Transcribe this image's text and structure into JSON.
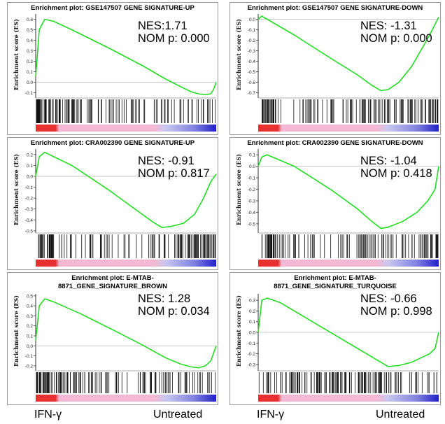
{
  "chart_data": [
    {
      "type": "line",
      "title": "Enrichment plot: GSE147507 GENE SIGNATURE-UP",
      "ylabel": "Enrichment score (ES)",
      "yticks": [
        "0.6",
        "0.5",
        "0.4",
        "0.3",
        "0.2",
        "0.1",
        "0.0",
        "-0.1"
      ],
      "ylim": [
        -0.15,
        0.65
      ],
      "nes": "NES:1.71",
      "pval": "NOM p: 0.000",
      "series": [
        {
          "x": [
            0,
            0.02,
            0.05,
            0.1,
            0.2,
            0.4,
            0.6,
            0.72,
            0.8,
            0.86,
            0.9,
            0.94,
            0.97,
            0.985,
            1.0
          ],
          "y": [
            0.05,
            0.5,
            0.6,
            0.58,
            0.5,
            0.33,
            0.15,
            0.03,
            -0.04,
            -0.09,
            -0.11,
            -0.12,
            -0.11,
            -0.07,
            0.0
          ]
        }
      ],
      "hit_density": "top"
    },
    {
      "type": "line",
      "title": "Enrichment plot: GSE147507 GENE SIGNATURE-DOWN",
      "ylabel": "Enrichment score (ES)",
      "yticks": [
        "0.0",
        "-0.1",
        "-0.2",
        "-0.3",
        "-0.4",
        "-0.5",
        "-0.6",
        "-0.7"
      ],
      "ylim": [
        -0.75,
        0.05
      ],
      "nes": "NES: -1.31",
      "pval": "NOM p: 0.000",
      "series": [
        {
          "x": [
            0,
            0.02,
            0.05,
            0.2,
            0.4,
            0.55,
            0.63,
            0.68,
            0.72,
            0.78,
            0.85,
            0.9,
            0.95,
            1.0
          ],
          "y": [
            0.0,
            0.03,
            0.0,
            -0.15,
            -0.37,
            -0.53,
            -0.63,
            -0.68,
            -0.67,
            -0.6,
            -0.45,
            -0.3,
            -0.15,
            0.02
          ]
        }
      ],
      "hit_density": "bottom"
    },
    {
      "type": "line",
      "title": "Enrichment plot: CRA002390 GENE SIGNATURE-UP",
      "ylabel": "Enrichment score (ES)",
      "yticks": [
        "0.2",
        "0.1",
        "0.0",
        "-0.1",
        "-0.2",
        "-0.3",
        "-0.4",
        "-0.5"
      ],
      "ylim": [
        -0.52,
        0.25
      ],
      "nes": "NES: -0.91",
      "pval": "NOM p: 0.817",
      "series": [
        {
          "x": [
            0,
            0.02,
            0.05,
            0.2,
            0.4,
            0.55,
            0.65,
            0.7,
            0.75,
            0.82,
            0.88,
            0.93,
            0.97,
            1.0
          ],
          "y": [
            0.0,
            0.18,
            0.22,
            0.1,
            -0.12,
            -0.3,
            -0.42,
            -0.47,
            -0.46,
            -0.43,
            -0.35,
            -0.2,
            -0.05,
            0.02
          ]
        }
      ],
      "hit_density": "bottom"
    },
    {
      "type": "line",
      "title": "Enrichment plot: CRA002390 GENE SIGNATURE-DOWN",
      "ylabel": "Enrichment score (ES)",
      "yticks": [
        "0.1",
        "0.0",
        "-0.1",
        "-0.2",
        "-0.3",
        "-0.4",
        "-0.5"
      ],
      "ylim": [
        -0.58,
        0.15
      ],
      "nes": "NES: -1.04",
      "pval": "NOM p: 0.418",
      "series": [
        {
          "x": [
            0,
            0.02,
            0.05,
            0.2,
            0.4,
            0.55,
            0.63,
            0.68,
            0.72,
            0.8,
            0.88,
            0.94,
            0.98,
            1.0
          ],
          "y": [
            0.0,
            0.08,
            0.1,
            0.0,
            -0.2,
            -0.37,
            -0.48,
            -0.54,
            -0.53,
            -0.48,
            -0.4,
            -0.3,
            -0.2,
            0.0
          ]
        }
      ],
      "hit_density": "bottom"
    },
    {
      "type": "line",
      "title": "Enrichment plot: E-MTAB-\n8871_GENE_SIGNATURE_BROWN",
      "ylabel": "Enrichment score (ES)",
      "yticks": [
        "0.5",
        "0.4",
        "0.3",
        "0.2",
        "0.1",
        "0.0",
        "-0.1",
        "-0.2"
      ],
      "ylim": [
        -0.25,
        0.52
      ],
      "nes": "NES: 1.28",
      "pval": "NOM p: 0.034",
      "series": [
        {
          "x": [
            0,
            0.02,
            0.05,
            0.1,
            0.25,
            0.45,
            0.6,
            0.72,
            0.8,
            0.86,
            0.9,
            0.94,
            0.97,
            1.0
          ],
          "y": [
            0.05,
            0.4,
            0.47,
            0.44,
            0.32,
            0.14,
            0.0,
            -0.12,
            -0.18,
            -0.21,
            -0.22,
            -0.2,
            -0.15,
            0.0
          ]
        }
      ],
      "hit_density": "top"
    },
    {
      "type": "line",
      "title": "Enrichment plot: E-MTAB-\n8871_GENE_SIGNATURE_TURQUOISE",
      "ylabel": "Enrichment score (ES)",
      "yticks": [
        "0.3",
        "0.2",
        "0.1",
        "0.0",
        "-0.1",
        "-0.2",
        "-0.3"
      ],
      "ylim": [
        -0.36,
        0.36
      ],
      "nes": "NES: -0.66",
      "pval": "NOM p: 0.998",
      "series": [
        {
          "x": [
            0,
            0.02,
            0.05,
            0.12,
            0.3,
            0.5,
            0.65,
            0.72,
            0.78,
            0.85,
            0.9,
            0.95,
            0.98,
            1.0
          ],
          "y": [
            0.0,
            0.3,
            0.32,
            0.28,
            0.1,
            -0.1,
            -0.25,
            -0.32,
            -0.31,
            -0.28,
            -0.24,
            -0.2,
            -0.15,
            0.0
          ]
        }
      ],
      "hit_density": "even"
    }
  ],
  "group_labels": {
    "left_a": "IFN-γ",
    "right_a": "Untreated",
    "left_b": "IFN-γ",
    "right_b": "Untreated"
  },
  "colors": {
    "es_line": "#22dd22",
    "positive_rank": "#e83030",
    "neutral_rank": "#f4b8d4",
    "negative_rank": "#2020c8"
  }
}
